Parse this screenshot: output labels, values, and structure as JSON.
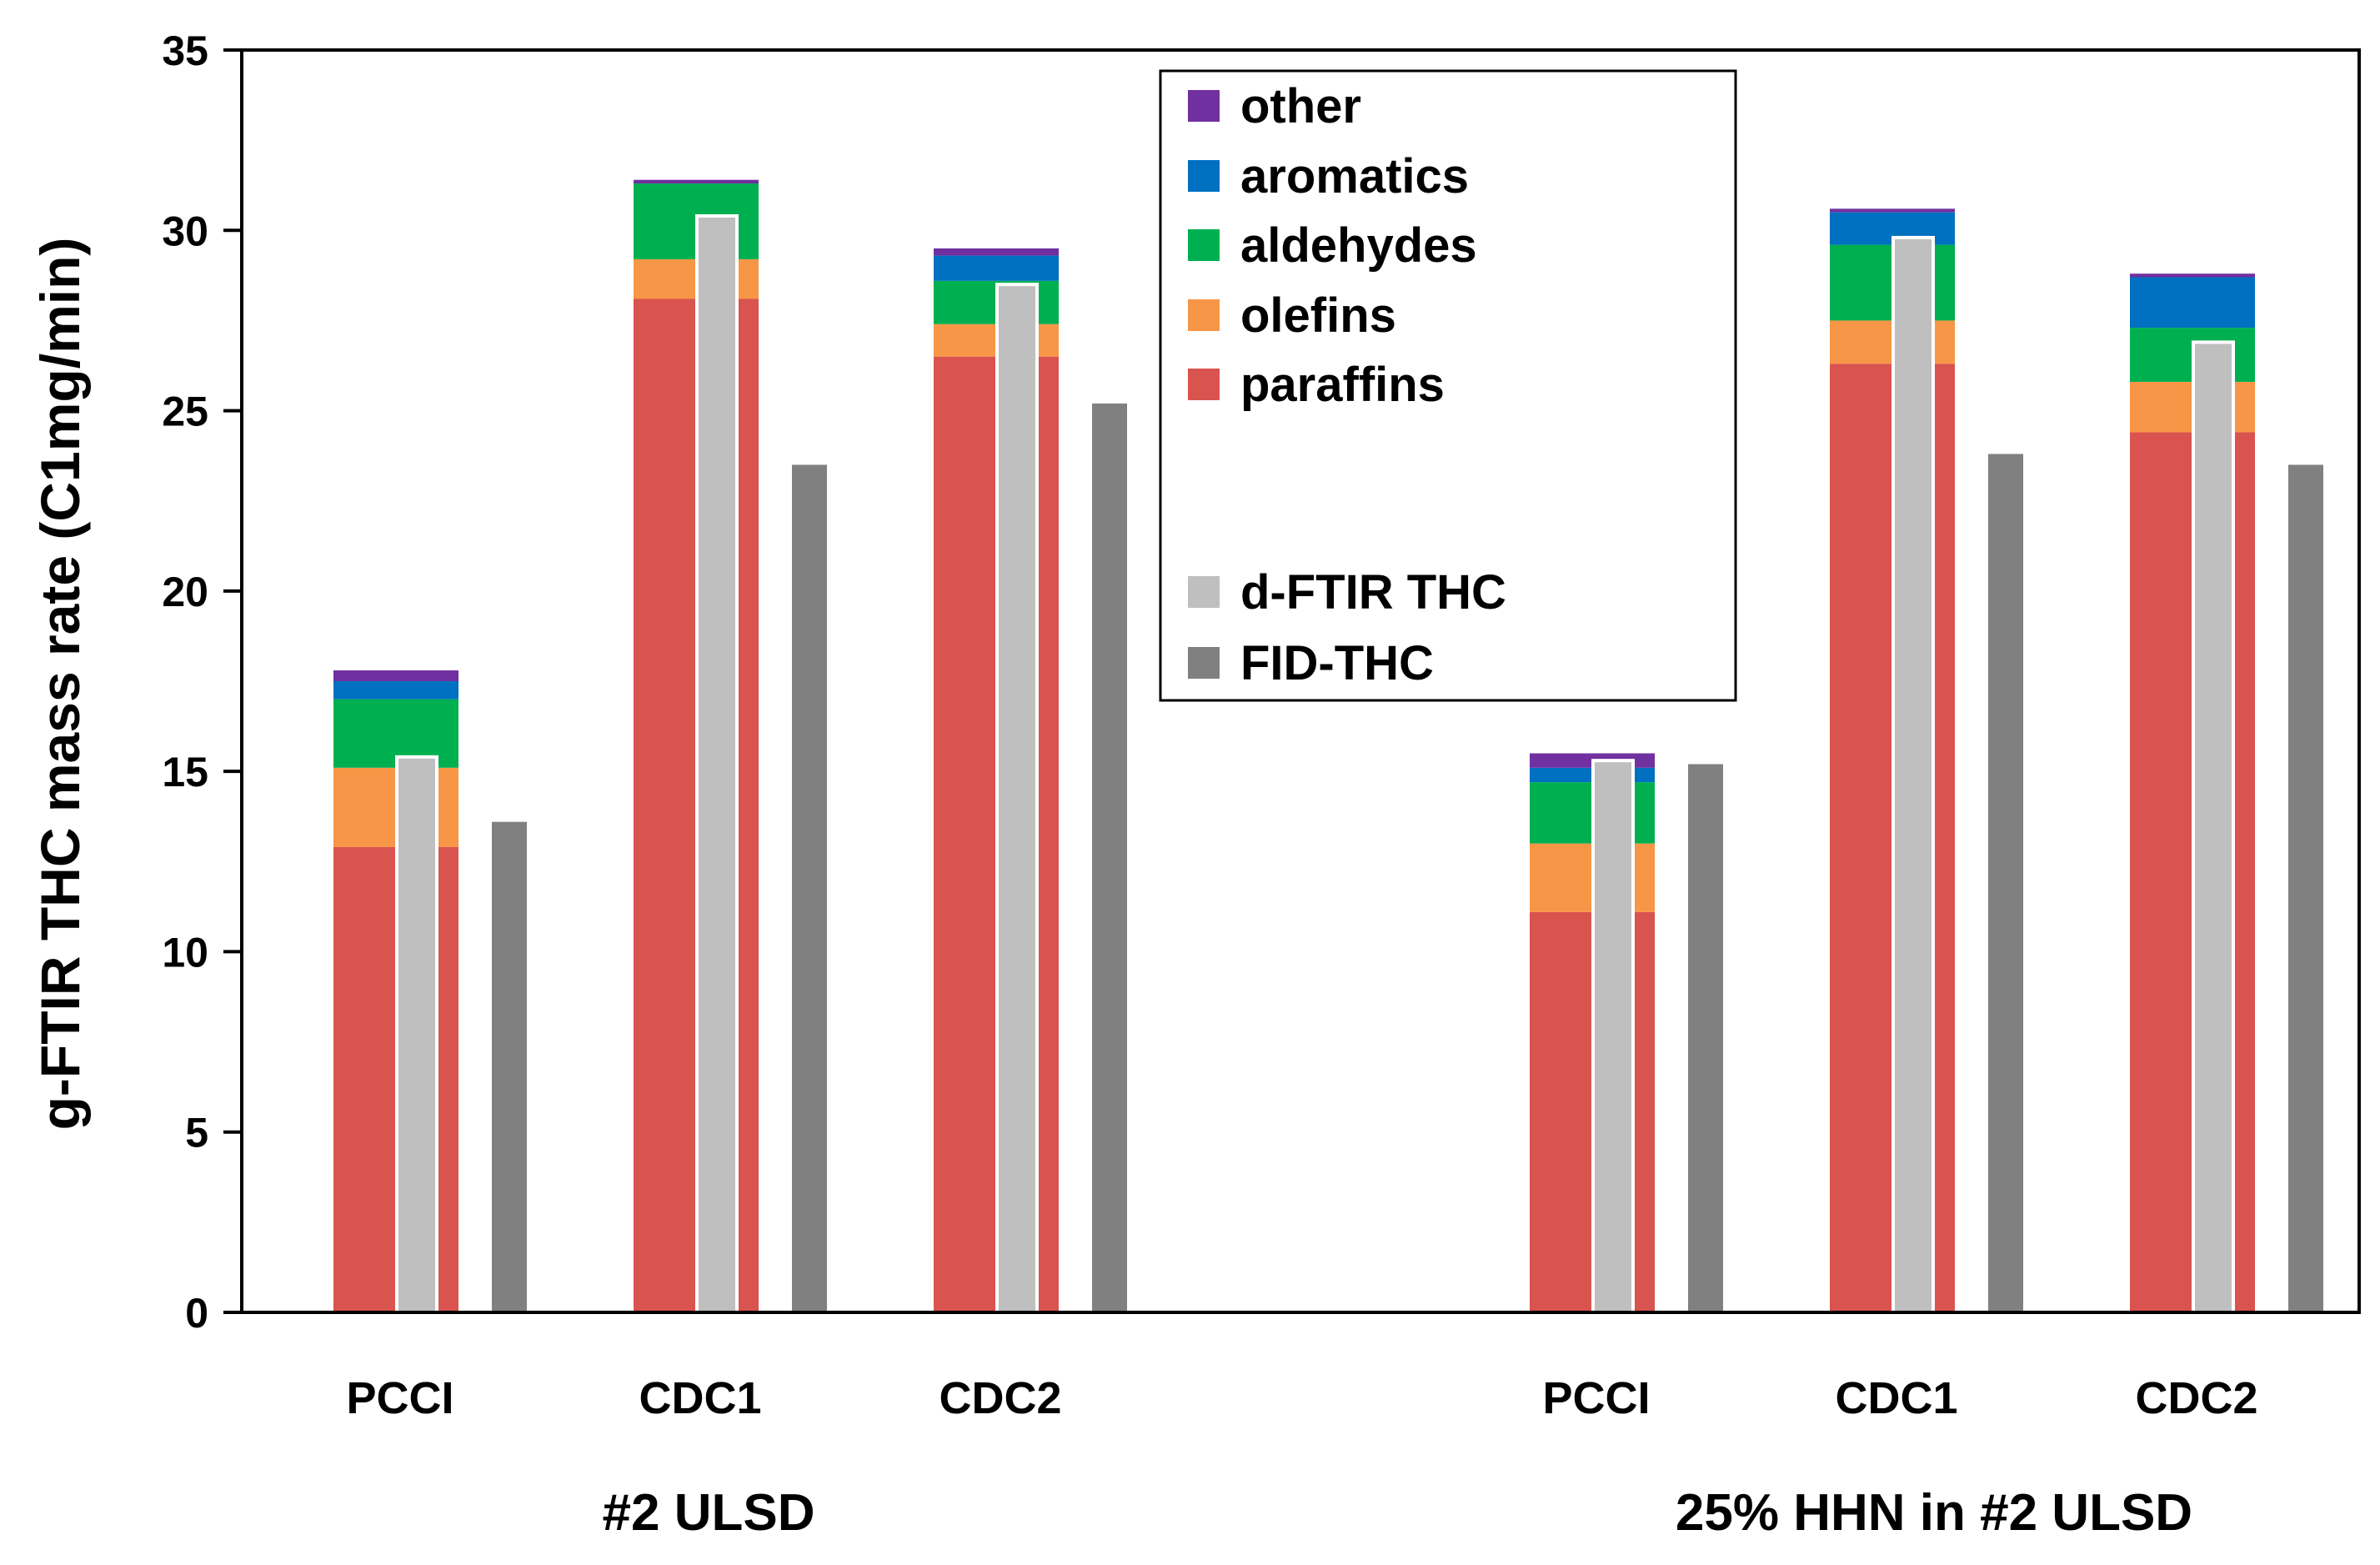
{
  "chart_data": {
    "type": "bar",
    "subtype": "stacked-with-comparison-bars",
    "title": "",
    "xlabel": "",
    "ylabel": "g-FTIR THC mass rate (C1mg/min)",
    "ylim": [
      0,
      35
    ],
    "yticks": [
      0,
      5,
      10,
      15,
      20,
      25,
      30,
      35
    ],
    "grid": false,
    "legend_position": "top-center",
    "groups": [
      {
        "label": "#2 ULSD",
        "categories": [
          "PCCI",
          "CDC1",
          "CDC2"
        ]
      },
      {
        "label": "25% HHN in #2 ULSD",
        "categories": [
          "PCCI",
          "CDC1",
          "CDC2"
        ]
      }
    ],
    "categories": [
      "PCCI",
      "CDC1",
      "CDC2",
      "PCCI",
      "CDC1",
      "CDC2"
    ],
    "stacked_series": [
      {
        "name": "paraffins",
        "color": "#d9534f",
        "values": [
          12.9,
          28.1,
          26.5,
          11.1,
          26.3,
          24.4
        ]
      },
      {
        "name": "olefins",
        "color": "#f79646",
        "values": [
          2.2,
          1.1,
          0.9,
          1.9,
          1.2,
          1.4
        ]
      },
      {
        "name": "aldehydes",
        "color": "#00b050",
        "values": [
          1.9,
          2.1,
          1.2,
          1.7,
          2.1,
          1.5
        ]
      },
      {
        "name": "aromatics",
        "color": "#0070c0",
        "values": [
          0.5,
          0.0,
          0.7,
          0.4,
          0.9,
          1.4
        ]
      },
      {
        "name": "other",
        "color": "#7030a0",
        "values": [
          0.3,
          0.1,
          0.2,
          0.4,
          0.1,
          0.1
        ]
      }
    ],
    "comparison_series": [
      {
        "name": "d-FTIR THC",
        "color": "#bfbfbf",
        "values": [
          15.4,
          30.4,
          28.5,
          15.3,
          29.8,
          26.9
        ]
      },
      {
        "name": "FID-THC",
        "color": "#808080",
        "values": [
          13.6,
          23.5,
          25.2,
          15.2,
          23.8,
          23.5
        ]
      }
    ],
    "legend": [
      {
        "name": "other",
        "color": "#7030a0"
      },
      {
        "name": "aromatics",
        "color": "#0070c0"
      },
      {
        "name": "aldehydes",
        "color": "#00b050"
      },
      {
        "name": "olefins",
        "color": "#f79646"
      },
      {
        "name": "paraffins",
        "color": "#d9534f"
      },
      {
        "name": "d-FTIR THC",
        "color": "#bfbfbf"
      },
      {
        "name": "FID-THC",
        "color": "#808080"
      }
    ]
  }
}
